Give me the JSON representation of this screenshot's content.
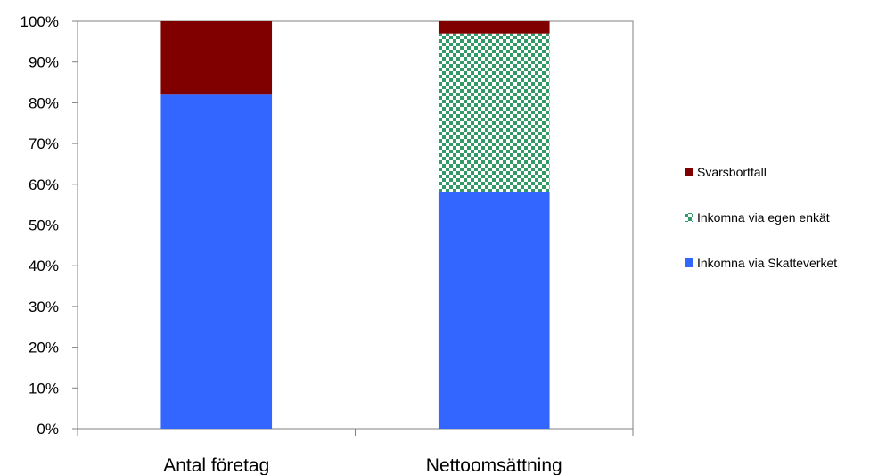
{
  "chart_data": {
    "type": "bar",
    "stacked": true,
    "percent_stacked": true,
    "categories": [
      "Antal företag",
      "Nettoomsättning"
    ],
    "series": [
      {
        "name": "Inkomna via Skatteverket",
        "values": [
          82,
          58
        ],
        "color": "#3366FF",
        "pattern": "solid"
      },
      {
        "name": "Inkomna via egen enkät",
        "values": [
          0,
          39
        ],
        "color": "#339966",
        "pattern": "checkerboard"
      },
      {
        "name": "Svarsbortfall",
        "values": [
          18,
          3
        ],
        "color": "#800000",
        "pattern": "solid"
      }
    ],
    "ylim": [
      0,
      100
    ],
    "yticks": [
      "0%",
      "10%",
      "20%",
      "30%",
      "40%",
      "50%",
      "60%",
      "70%",
      "80%",
      "90%",
      "100%"
    ],
    "grid": false,
    "legend_position": "right",
    "legend_order": [
      "Svarsbortfall",
      "Inkomna via egen enkät",
      "Inkomna via Skatteverket"
    ]
  }
}
